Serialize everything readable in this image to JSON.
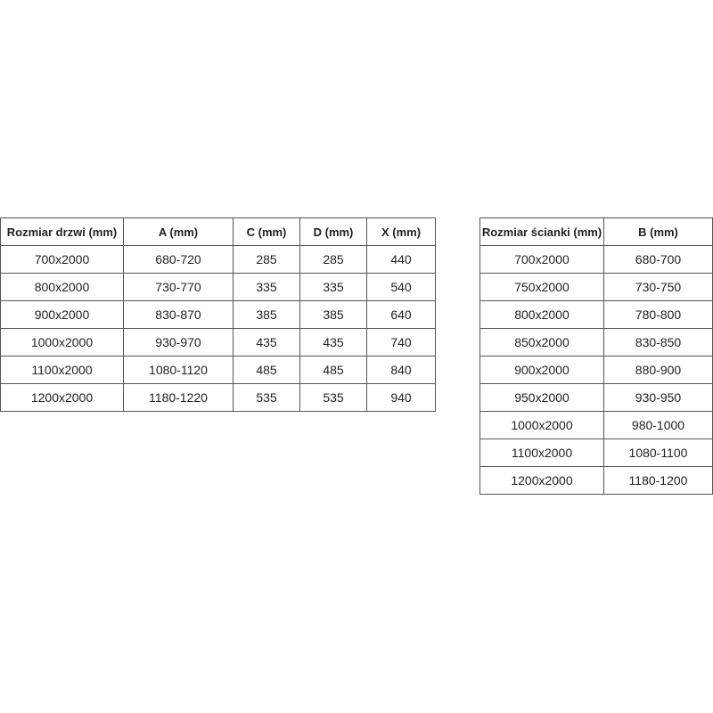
{
  "door_table": {
    "headers": [
      "Rozmiar drzwi (mm)",
      "A (mm)",
      "C (mm)",
      "D (mm)",
      "X (mm)"
    ],
    "rows": [
      [
        "700x2000",
        "680-720",
        "285",
        "285",
        "440"
      ],
      [
        "800x2000",
        "730-770",
        "335",
        "335",
        "540"
      ],
      [
        "900x2000",
        "830-870",
        "385",
        "385",
        "640"
      ],
      [
        "1000x2000",
        "930-970",
        "435",
        "435",
        "740"
      ],
      [
        "1100x2000",
        "1080-1120",
        "485",
        "485",
        "840"
      ],
      [
        "1200x2000",
        "1180-1220",
        "535",
        "535",
        "940"
      ]
    ]
  },
  "wall_table": {
    "headers": [
      "Rozmiar ścianki (mm)",
      "B (mm)"
    ],
    "rows": [
      [
        "700x2000",
        "680-700"
      ],
      [
        "750x2000",
        "730-750"
      ],
      [
        "800x2000",
        "780-800"
      ],
      [
        "850x2000",
        "830-850"
      ],
      [
        "900x2000",
        "880-900"
      ],
      [
        "950x2000",
        "930-950"
      ],
      [
        "1000x2000",
        "980-1000"
      ],
      [
        "1100x2000",
        "1080-1100"
      ],
      [
        "1200x2000",
        "1180-1200"
      ]
    ]
  }
}
